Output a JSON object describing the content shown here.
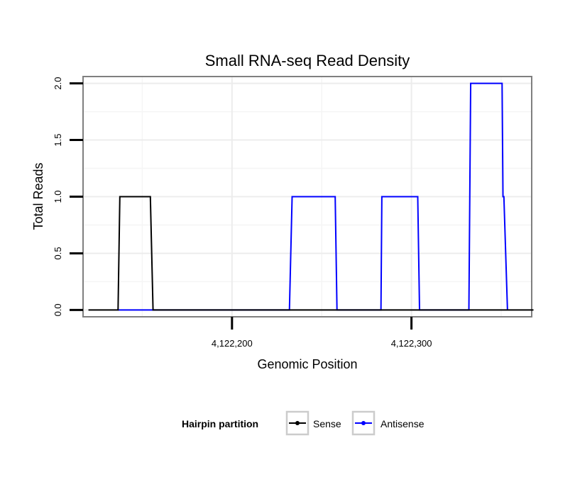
{
  "chart_data": {
    "type": "line",
    "title": "Small RNA-seq Read Density",
    "xlabel": "Genomic Position",
    "ylabel": "Total Reads",
    "xlim": [
      4122117,
      4122367
    ],
    "ylim": [
      -0.06,
      2.06
    ],
    "x_ticks": [
      {
        "value": 4122200,
        "label": "4,122,200"
      },
      {
        "value": 4122300,
        "label": "4,122,300"
      }
    ],
    "y_ticks": [
      {
        "value": 0,
        "label": "0.0"
      },
      {
        "value": 0.5,
        "label": "0.5"
      },
      {
        "value": 1,
        "label": "1.0"
      },
      {
        "value": 1.5,
        "label": "1.5"
      },
      {
        "value": 2,
        "label": "2.0"
      }
    ],
    "legend": {
      "title": "Hairpin partition",
      "position": "bottom"
    },
    "series": [
      {
        "name": "Sense",
        "color": "#000000",
        "points": [
          [
            4122120,
            0
          ],
          [
            4122136.5,
            0
          ],
          [
            4122137.5,
            1
          ],
          [
            4122154.5,
            1
          ],
          [
            4122156,
            0
          ],
          [
            4122368,
            0
          ]
        ]
      },
      {
        "name": "Antisense",
        "color": "#0000ff",
        "points": [
          [
            4122136.5,
            0
          ],
          [
            4122156,
            0
          ],
          [
            4122232,
            0
          ],
          [
            4122233.5,
            1
          ],
          [
            4122257.5,
            1
          ],
          [
            4122258.5,
            0
          ],
          [
            4122283,
            0
          ],
          [
            4122283.5,
            1
          ],
          [
            4122303.5,
            1
          ],
          [
            4122304.5,
            0
          ],
          [
            4122332,
            0
          ],
          [
            4122333,
            2
          ],
          [
            4122350.5,
            2
          ],
          [
            4122351,
            1
          ],
          [
            4122351.5,
            1
          ],
          [
            4122353.5,
            0
          ]
        ]
      }
    ]
  }
}
